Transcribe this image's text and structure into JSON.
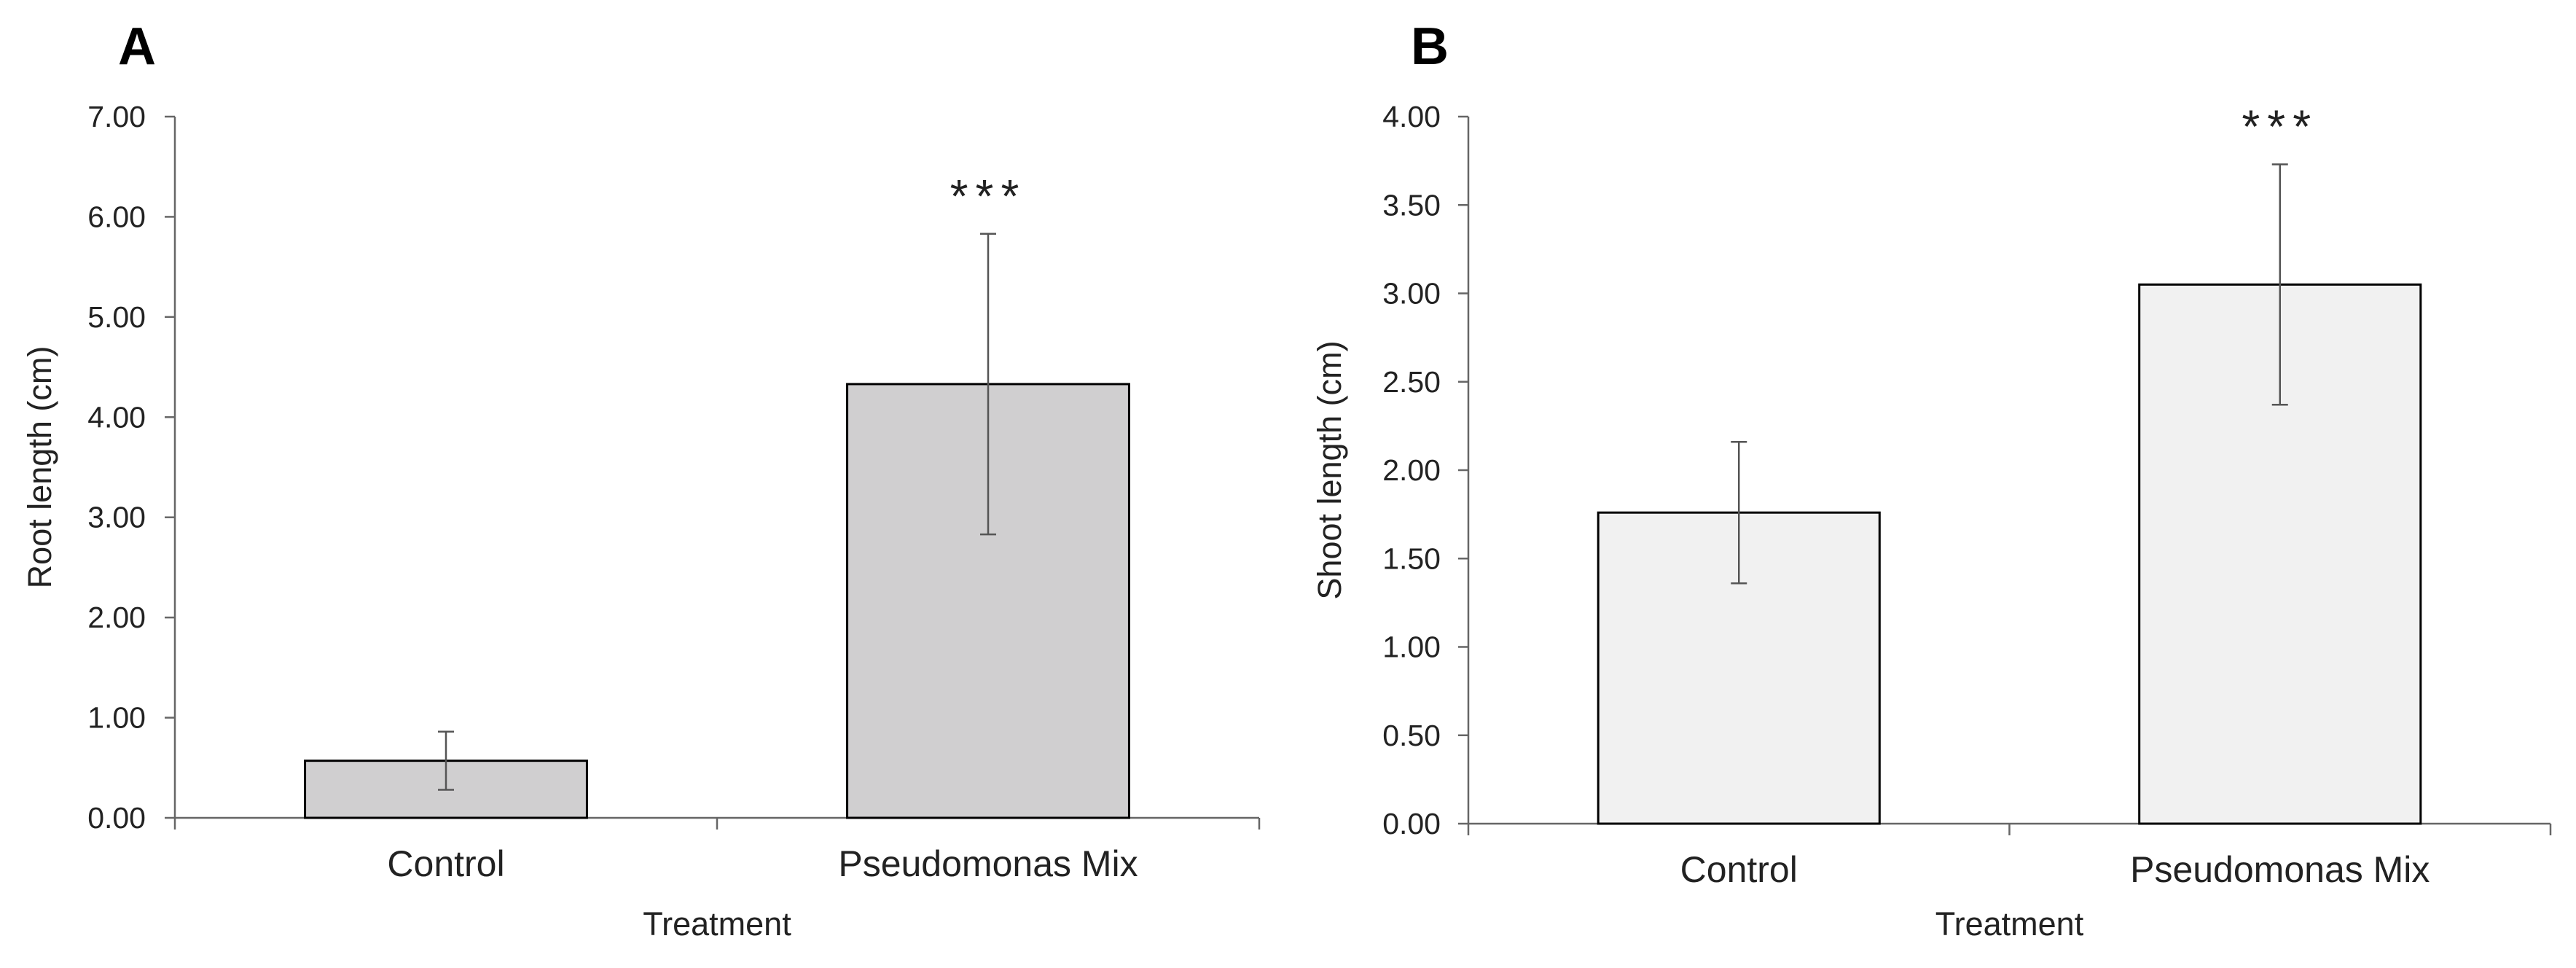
{
  "figure": {
    "background": "#ffffff"
  },
  "chart_data": [
    {
      "panel": "A",
      "type": "bar",
      "title": "",
      "xlabel": "Treatment",
      "ylabel": "Root length (cm)",
      "categories": [
        "Control",
        "Pseudomonas Mix"
      ],
      "values": [
        0.57,
        4.33
      ],
      "errors": [
        0.29,
        1.5
      ],
      "significance": [
        "",
        "***"
      ],
      "ylim": [
        0,
        7
      ],
      "yticks": [
        "0.00",
        "1.00",
        "2.00",
        "3.00",
        "4.00",
        "5.00",
        "6.00",
        "7.00"
      ],
      "bar_color": "#d0cfd0",
      "grid": false,
      "legend": "none"
    },
    {
      "panel": "B",
      "type": "bar",
      "title": "",
      "xlabel": "Treatment",
      "ylabel": "Shoot length (cm)",
      "categories": [
        "Control",
        "Pseudomonas Mix"
      ],
      "values": [
        1.76,
        3.05
      ],
      "errors": [
        0.4,
        0.68
      ],
      "significance": [
        "",
        "***"
      ],
      "ylim": [
        0,
        4
      ],
      "yticks": [
        "0.00",
        "0.50",
        "1.00",
        "1.50",
        "2.00",
        "2.50",
        "3.00",
        "3.50",
        "4.00"
      ],
      "bar_color": "#f1f1f1",
      "grid": false,
      "legend": "none"
    }
  ]
}
